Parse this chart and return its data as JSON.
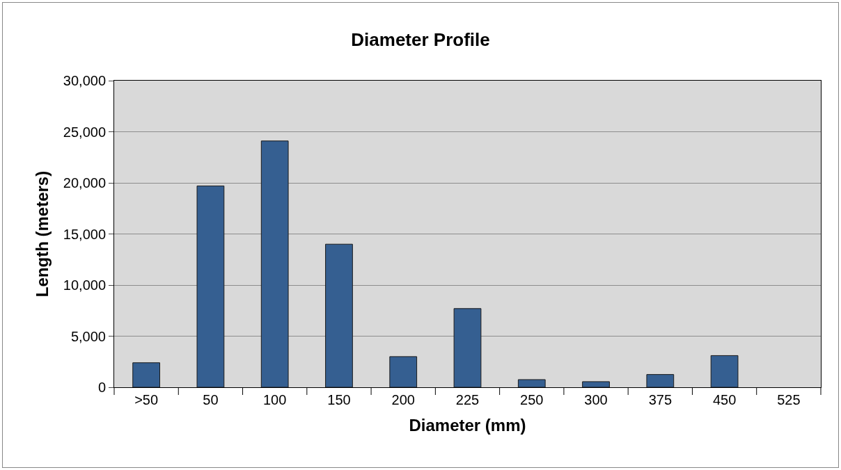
{
  "chart_data": {
    "type": "bar",
    "title": "Diameter Profile",
    "xlabel": "Diameter (mm)",
    "ylabel": "Length (meters)",
    "categories": [
      ">50",
      "50",
      "100",
      "150",
      "200",
      "225",
      "250",
      "300",
      "375",
      "450",
      "525"
    ],
    "values": [
      2400,
      19700,
      24100,
      14000,
      3000,
      7700,
      750,
      550,
      1250,
      3100,
      0
    ],
    "color": "#355f91",
    "ylim": [
      0,
      30000
    ],
    "yticks": [
      {
        "value": 0,
        "label": "0"
      },
      {
        "value": 5000,
        "label": "5,000"
      },
      {
        "value": 10000,
        "label": "10,000"
      },
      {
        "value": 15000,
        "label": "15,000"
      },
      {
        "value": 20000,
        "label": "20,000"
      },
      {
        "value": 25000,
        "label": "25,000"
      },
      {
        "value": 30000,
        "label": "30,000"
      }
    ],
    "grid": "y",
    "legend": false
  }
}
